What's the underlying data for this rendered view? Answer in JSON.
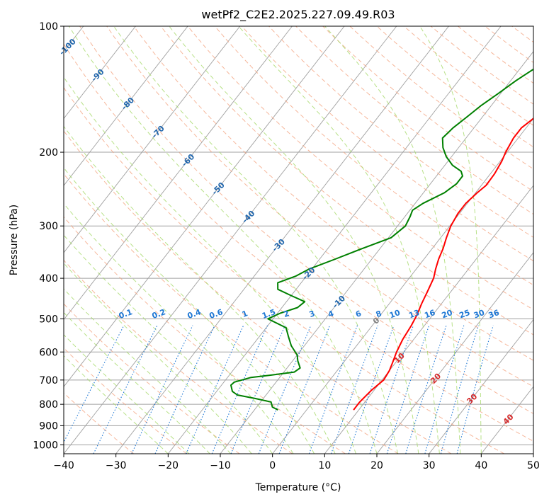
{
  "chart_data": {
    "type": "line",
    "title": "wetPf2_C2E2.2025.227.09.49.R03",
    "xlabel": "Temperature (°C)",
    "ylabel": "Pressure (hPa)",
    "xlim": [
      -40,
      50
    ],
    "ylim": [
      1050,
      100
    ],
    "y_scale": "log",
    "grid": true,
    "x_ticks": [
      -40,
      -30,
      -20,
      -10,
      0,
      10,
      20,
      30,
      40,
      50
    ],
    "y_ticks": [
      100,
      200,
      300,
      400,
      500,
      600,
      700,
      800,
      900,
      1000
    ],
    "colors": {
      "temperature": "#ff0000",
      "dewpoint": "#008000",
      "isotherm": "#a0a0a0",
      "dry_adiabat": "#f4a582",
      "moist_adiabat": "#a6d96a",
      "mixing_ratio": "#1f78d4",
      "isotherm_label": "#2166ac",
      "adiabat_label": "#d62728",
      "zero_label": "#808080"
    },
    "isotherm_labels": [
      "-100",
      "-90",
      "-80",
      "-70",
      "-60",
      "-50",
      "-40",
      "-30",
      "-20",
      "-10"
    ],
    "isotherm_label_values": [
      -100,
      -90,
      -80,
      -70,
      -60,
      -50,
      -40,
      -30,
      -20,
      -10
    ],
    "zero_label": "0",
    "warm_labels": [
      "10",
      "20",
      "30",
      "40"
    ],
    "warm_label_values": [
      10,
      20,
      30,
      40
    ],
    "mixing_ratio_labels": [
      "0.1",
      "0.2",
      "0.4",
      "0.6",
      "1",
      "1.5",
      "2",
      "3",
      "4",
      "6",
      "8",
      "10",
      "13",
      "16",
      "20",
      "25",
      "30",
      "36"
    ],
    "mixing_ratio_values": [
      0.1,
      0.2,
      0.4,
      0.6,
      1,
      1.5,
      2,
      3,
      4,
      6,
      8,
      10,
      13,
      16,
      20,
      25,
      30,
      36
    ],
    "series": [
      {
        "key": "temperature",
        "x": [
          9.0,
          9.0,
          9.5,
          10.3,
          10.0,
          9.5,
          8.6,
          7.9,
          7.5,
          7.0,
          6.2,
          5.5,
          4.7,
          3.7,
          2.8,
          2.1,
          1.1,
          0.2,
          -0.3,
          -0.3,
          0.3,
          0.9,
          0.8,
          0.3,
          -0.3,
          -0.9,
          -0.9,
          -0.2,
          0.6,
          1.5,
          2.3,
          3.5,
          8.0,
          15.5,
          18.0,
          19.2,
          20.0,
          20.6,
          21.2
        ],
        "y": [
          825,
          790,
          740,
          700,
          665,
          640,
          600,
          560,
          520,
          490,
          460,
          430,
          400,
          380,
          360,
          340,
          320,
          300,
          280,
          265,
          250,
          240,
          225,
          210,
          200,
          185,
          175,
          168,
          160,
          156,
          152,
          150,
          140,
          127,
          120,
          112,
          106,
          102,
          100
        ]
      },
      {
        "key": "dewpoint",
        "x": [
          -5.5,
          -7.0,
          -8.0,
          -11.5,
          -15.5,
          -17.0,
          -18.2,
          -18.0,
          -15.5,
          -11.5,
          -8.0,
          -7.5,
          -9.0,
          -10.0,
          -12.5,
          -14.5,
          -16.2,
          -21.0,
          -19.5,
          -17.0,
          -16.5,
          -20.0,
          -23.5,
          -24.5,
          -22.0,
          -20.5,
          -17.0,
          -13.5,
          -9.5,
          -8.5,
          -9.0,
          -9.5,
          -8.5,
          -6.0,
          -5.0,
          -5.0,
          -6.0,
          -8.5,
          -11.0,
          -13.0,
          -14.5,
          -14.0,
          -13.0,
          -12.0,
          -10.5,
          -9.0,
          -7.0,
          -5.0,
          -2.0,
          0.5
        ],
        "y": [
          825,
          812,
          790,
          775,
          760,
          745,
          720,
          708,
          690,
          680,
          670,
          655,
          630,
          610,
          580,
          550,
          525,
          500,
          485,
          470,
          455,
          440,
          425,
          410,
          395,
          380,
          360,
          340,
          320,
          300,
          285,
          275,
          265,
          250,
          238,
          228,
          222,
          215,
          205,
          195,
          185,
          175,
          165,
          155,
          145,
          135,
          125,
          115,
          107,
          100
        ]
      }
    ]
  }
}
